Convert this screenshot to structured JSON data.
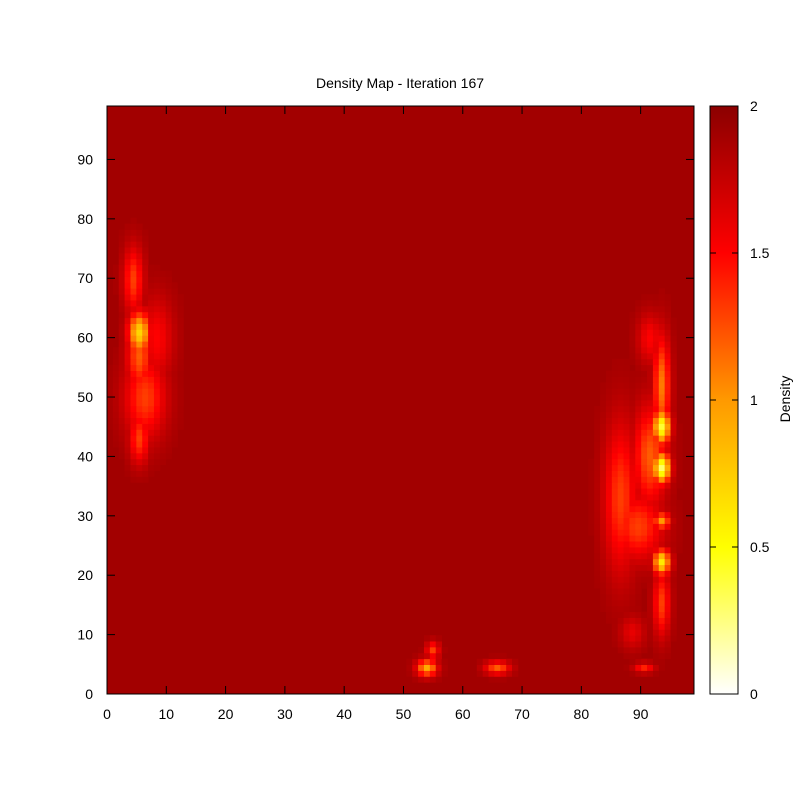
{
  "chart_data": {
    "type": "heatmap",
    "title": "Density Map - Iteration 167",
    "xlabel": "",
    "ylabel": "",
    "xlim": [
      0,
      99
    ],
    "ylim": [
      0,
      99
    ],
    "x_ticks": [
      0,
      10,
      20,
      30,
      40,
      50,
      60,
      70,
      80,
      90
    ],
    "y_ticks": [
      0,
      10,
      20,
      30,
      40,
      50,
      60,
      70,
      80,
      90
    ],
    "grid_resolution": 100,
    "background_density": 1.9,
    "colorbar": {
      "label": "Density",
      "range": [
        0,
        2
      ],
      "ticks": [
        "0",
        "0.5",
        "1",
        "1.5",
        "2"
      ],
      "colormap": [
        "#ffffff",
        "#ffff00",
        "#ff9900",
        "#ff0000",
        "#8b0000"
      ]
    },
    "hotspots": [
      {
        "x": 5,
        "y": 61,
        "sx": 1.3,
        "sy": 2.5,
        "value": 0.7
      },
      {
        "x": 5,
        "y": 57,
        "sx": 1.5,
        "sy": 4,
        "value": 1.2
      },
      {
        "x": 6,
        "y": 50,
        "sx": 2.5,
        "sy": 5,
        "value": 1.3
      },
      {
        "x": 4,
        "y": 70,
        "sx": 1.2,
        "sy": 4,
        "value": 1.3
      },
      {
        "x": 5,
        "y": 43,
        "sx": 1.2,
        "sy": 3,
        "value": 1.3
      },
      {
        "x": 8,
        "y": 60,
        "sx": 2,
        "sy": 5,
        "value": 1.5
      },
      {
        "x": 94,
        "y": 45,
        "sx": 1,
        "sy": 2,
        "value": 0.4
      },
      {
        "x": 94,
        "y": 38,
        "sx": 1,
        "sy": 1.8,
        "value": 0.3
      },
      {
        "x": 94,
        "y": 22,
        "sx": 1,
        "sy": 1.5,
        "value": 0.6
      },
      {
        "x": 94,
        "y": 29,
        "sx": 1,
        "sy": 1,
        "value": 1.0
      },
      {
        "x": 94,
        "y": 52,
        "sx": 1,
        "sy": 6,
        "value": 1.1
      },
      {
        "x": 92,
        "y": 40,
        "sx": 2,
        "sy": 6,
        "value": 1.2
      },
      {
        "x": 87,
        "y": 33,
        "sx": 2,
        "sy": 9,
        "value": 1.3
      },
      {
        "x": 90,
        "y": 28,
        "sx": 3,
        "sy": 4,
        "value": 1.3
      },
      {
        "x": 94,
        "y": 15,
        "sx": 1,
        "sy": 4,
        "value": 1.3
      },
      {
        "x": 92,
        "y": 60,
        "sx": 1.5,
        "sy": 3,
        "value": 1.5
      },
      {
        "x": 89,
        "y": 10,
        "sx": 1.5,
        "sy": 2,
        "value": 1.6
      },
      {
        "x": 54,
        "y": 4,
        "sx": 1.2,
        "sy": 1,
        "value": 0.9
      },
      {
        "x": 55,
        "y": 7,
        "sx": 0.8,
        "sy": 1,
        "value": 1.3
      },
      {
        "x": 66,
        "y": 4,
        "sx": 1.5,
        "sy": 0.8,
        "value": 1.2
      },
      {
        "x": 91,
        "y": 4,
        "sx": 1.2,
        "sy": 0.6,
        "value": 1.4
      }
    ]
  }
}
